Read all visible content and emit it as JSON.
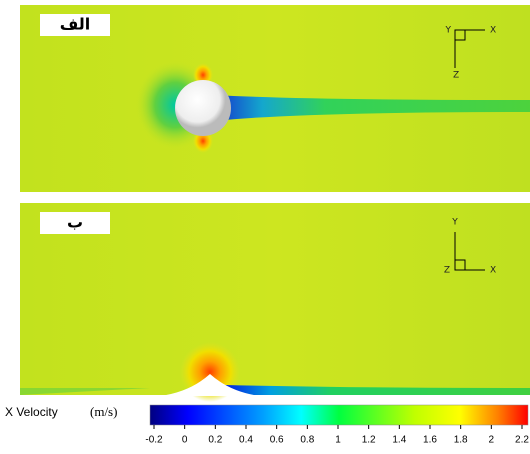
{
  "panels": [
    {
      "label": "الف",
      "axes": [
        "Y",
        "X",
        "Z"
      ]
    },
    {
      "label": "ب",
      "axes": [
        "Y",
        "X",
        "Z"
      ]
    }
  ],
  "colorbar": {
    "title": "X Velocity",
    "unit": "(m/s)",
    "lim": [
      -0.2,
      2.2
    ],
    "ticks": [
      -0.2,
      0,
      0.2,
      0.4,
      0.6,
      0.8,
      1,
      1.2,
      1.4,
      1.6,
      1.8,
      2,
      2.2
    ]
  }
}
